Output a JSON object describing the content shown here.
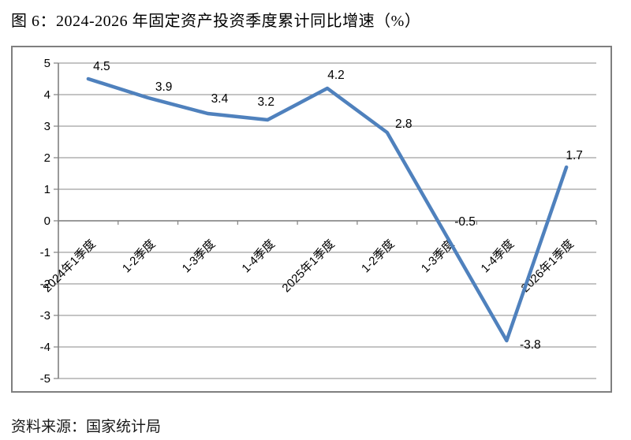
{
  "page": {
    "title": "图 6：2024-2026 年固定资产投资季度累计同比增速（%）",
    "source": "资料来源：国家统计局"
  },
  "chart_data": {
    "type": "line",
    "title": "2024-2026 年固定资产投资季度累计同比增速（%）",
    "categories": [
      "2024年1季度",
      "1-2季度",
      "1-3季度",
      "1-4季度",
      "2025年1季度",
      "1-2季度",
      "1-3季度",
      "1-4季度",
      "2026年1季度"
    ],
    "series": [
      {
        "name": "固定资产投资季度累计同比增速",
        "values": [
          4.5,
          3.9,
          3.4,
          3.2,
          4.2,
          2.8,
          -0.5,
          -3.8,
          1.7
        ]
      }
    ],
    "data_labels": [
      "4.5",
      "3.9",
      "3.4",
      "3.2",
      "4.2",
      "2.8",
      "-0.5",
      "-3.8",
      "1.7"
    ],
    "xlabel": "",
    "ylabel": "",
    "ylim": [
      -5,
      5
    ],
    "ytick_step": 1,
    "yticks": [
      "5",
      "4",
      "3",
      "2",
      "1",
      "0",
      "-1",
      "-2",
      "-3",
      "-4",
      "-5"
    ],
    "grid": true,
    "legend_position": "none",
    "colors": {
      "line": "#4F81BD",
      "grid": "#A0A0A0",
      "axis": "#808080",
      "text": "#000000"
    }
  }
}
